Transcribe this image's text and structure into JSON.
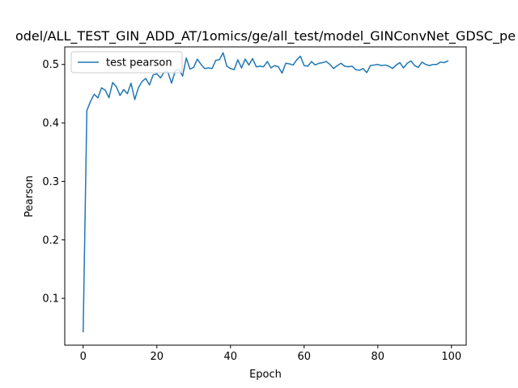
{
  "chart_data": {
    "type": "line",
    "title": "odel/ALL_TEST_GIN_ADD_AT/1omics/ge/all_test/model_GINConvNet_GDSC_pe",
    "xlabel": "Epoch",
    "ylabel": "Pearson",
    "xlim": [
      -5,
      104
    ],
    "ylim": [
      0.02,
      0.53
    ],
    "xticks": [
      0,
      20,
      40,
      60,
      80,
      100
    ],
    "yticks": [
      0.1,
      0.2,
      0.3,
      0.4,
      0.5
    ],
    "xtick_labels": [
      "0",
      "20",
      "40",
      "60",
      "80",
      "100"
    ],
    "ytick_labels": [
      "0.1",
      "0.2",
      "0.3",
      "0.4",
      "0.5"
    ],
    "legend_position": "upper-left",
    "grid": false,
    "series": [
      {
        "name": "test pearson",
        "color": "#1f77b4",
        "x": [
          0,
          1,
          2,
          3,
          4,
          5,
          6,
          7,
          8,
          9,
          10,
          11,
          12,
          13,
          14,
          15,
          16,
          17,
          18,
          19,
          20,
          21,
          22,
          23,
          24,
          25,
          26,
          27,
          28,
          29,
          30,
          31,
          32,
          33,
          34,
          35,
          36,
          37,
          38,
          39,
          40,
          41,
          42,
          43,
          44,
          45,
          46,
          47,
          48,
          49,
          50,
          51,
          52,
          53,
          54,
          55,
          56,
          57,
          58,
          59,
          60,
          61,
          62,
          63,
          64,
          65,
          66,
          67,
          68,
          69,
          70,
          71,
          72,
          73,
          74,
          75,
          76,
          77,
          78,
          79,
          80,
          81,
          82,
          83,
          84,
          85,
          86,
          87,
          88,
          89,
          90,
          91,
          92,
          93,
          94,
          95,
          96,
          97,
          98,
          99
        ],
        "y": [
          0.043,
          0.421,
          0.437,
          0.449,
          0.443,
          0.46,
          0.456,
          0.443,
          0.469,
          0.462,
          0.447,
          0.457,
          0.45,
          0.468,
          0.44,
          0.46,
          0.471,
          0.476,
          0.465,
          0.482,
          0.484,
          0.477,
          0.487,
          0.487,
          0.468,
          0.489,
          0.492,
          0.48,
          0.511,
          0.492,
          0.495,
          0.509,
          0.5,
          0.493,
          0.494,
          0.493,
          0.507,
          0.508,
          0.52,
          0.497,
          0.493,
          0.491,
          0.508,
          0.494,
          0.509,
          0.499,
          0.51,
          0.496,
          0.497,
          0.496,
          0.505,
          0.494,
          0.498,
          0.496,
          0.485,
          0.502,
          0.501,
          0.499,
          0.508,
          0.514,
          0.498,
          0.497,
          0.505,
          0.499,
          0.502,
          0.503,
          0.505,
          0.5,
          0.493,
          0.498,
          0.502,
          0.497,
          0.496,
          0.497,
          0.491,
          0.49,
          0.493,
          0.486,
          0.498,
          0.499,
          0.5,
          0.498,
          0.499,
          0.497,
          0.493,
          0.499,
          0.503,
          0.494,
          0.502,
          0.506,
          0.498,
          0.495,
          0.504,
          0.5,
          0.498,
          0.5,
          0.5,
          0.504,
          0.503,
          0.506
        ]
      }
    ]
  }
}
